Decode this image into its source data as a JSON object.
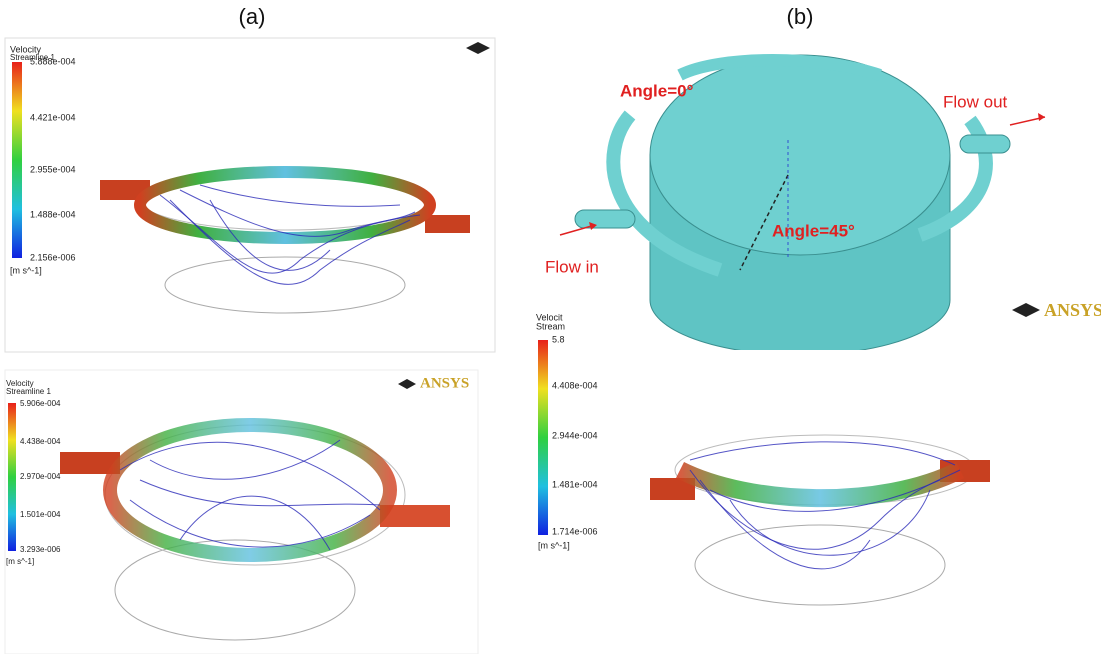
{
  "panels": [
    {
      "label": "(a)"
    },
    {
      "label": "(b)"
    }
  ],
  "plots": [
    {
      "legend": {
        "title": "Velocity",
        "subtitle": "Streamline 1",
        "ticks": [
          "5.888e-004",
          "4.421e-004",
          "2.955e-004",
          "1.488e-004",
          "2.156e-006"
        ],
        "unit": "[m s^-1]"
      }
    },
    {
      "legend": {
        "title": "Velocity",
        "subtitle": "Streamline 1",
        "ticks": [
          "5.906e-004",
          "4.438e-004",
          "2.970e-004",
          "1.501e-004",
          "3.293e-006"
        ],
        "unit": "[m s^-1]"
      },
      "logo": "ANSYS"
    },
    {
      "legend": {
        "title": "Velocit",
        "subtitle": "Stream",
        "ticks": [
          "5.8",
          "4.408e-004",
          "2.944e-004",
          "1.481e-004",
          "1.714e-006"
        ],
        "unit": "[m s^-1]"
      },
      "logo": "ANSYS"
    }
  ],
  "model": {
    "annotations": [
      "Angle=0°",
      "Angle=45°",
      "Flow out",
      "Flow in"
    ]
  }
}
